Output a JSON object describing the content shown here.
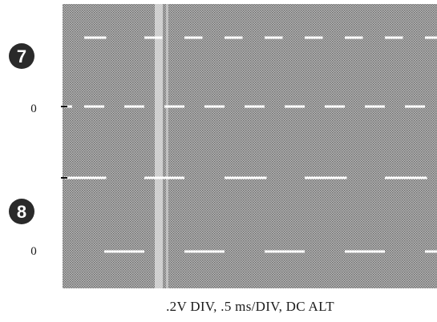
{
  "figure": {
    "traces": [
      {
        "marker": "7",
        "zero_label": "0",
        "high_segments": [
          [
            0.05,
            0.105
          ],
          [
            0.2,
            0.245
          ],
          [
            0.3,
            0.345
          ],
          [
            0.4,
            0.445
          ],
          [
            0.5,
            0.545
          ],
          [
            0.6,
            0.645
          ],
          [
            0.7,
            0.745
          ],
          [
            0.8,
            0.845
          ],
          [
            0.9,
            0.945
          ],
          [
            1.0,
            1.045
          ]
        ],
        "low_segments": [
          [
            0.0,
            0.02
          ],
          [
            0.05,
            0.1
          ],
          [
            0.15,
            0.2
          ],
          [
            0.25,
            0.3
          ],
          [
            0.35,
            0.4
          ],
          [
            0.45,
            0.5
          ],
          [
            0.55,
            0.6
          ],
          [
            0.65,
            0.7
          ],
          [
            0.75,
            0.8
          ],
          [
            0.85,
            0.9
          ],
          [
            0.95,
            1.0
          ]
        ]
      },
      {
        "marker": "8",
        "zero_label": "0",
        "high_segments": [
          [
            0.0,
            0.105
          ],
          [
            0.2,
            0.3
          ],
          [
            0.4,
            0.505
          ],
          [
            0.6,
            0.705
          ],
          [
            0.8,
            0.905
          ],
          [
            1.0,
            1.045
          ]
        ],
        "low_segments": [
          [
            0.1,
            0.2
          ],
          [
            0.3,
            0.4
          ],
          [
            0.5,
            0.6
          ],
          [
            0.7,
            0.8
          ],
          [
            0.9,
            1.0
          ]
        ]
      }
    ],
    "caption": ".2V DIV, .5 ms/DIV, DC ALT"
  }
}
